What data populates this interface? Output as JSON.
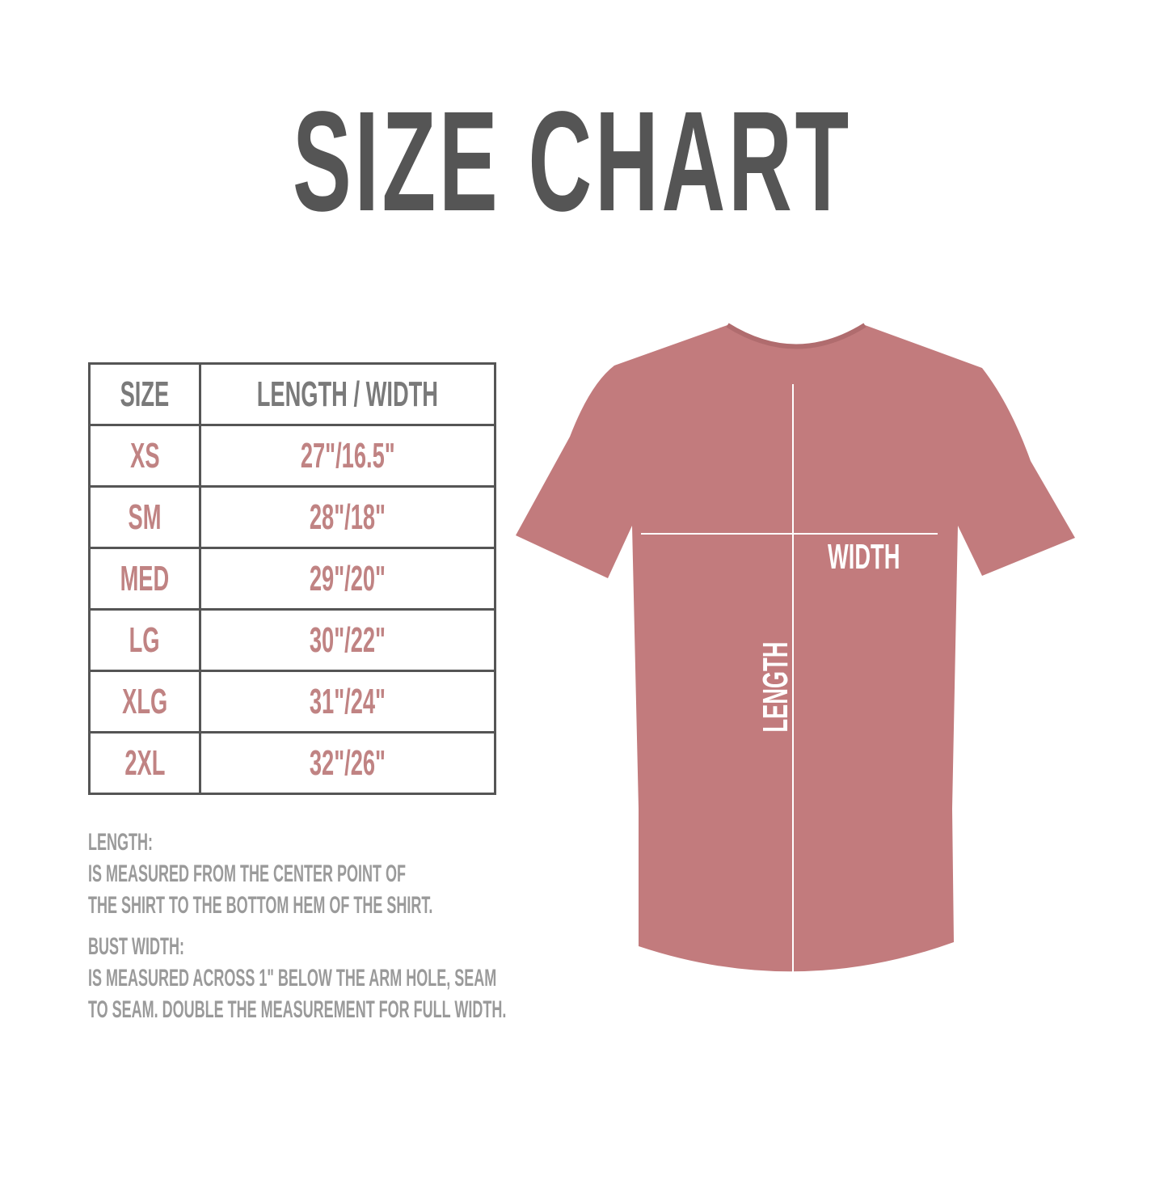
{
  "title": "SIZE CHART",
  "table": {
    "headers": [
      "SIZE",
      "LENGTH / WIDTH"
    ],
    "rows": [
      {
        "size": "XS",
        "measure": "27\"/16.5\""
      },
      {
        "size": "SM",
        "measure": "28\"/18\""
      },
      {
        "size": "MED",
        "measure": "29\"/20\""
      },
      {
        "size": "LG",
        "measure": "30\"/22\""
      },
      {
        "size": "XLG",
        "measure": "31\"/24\""
      },
      {
        "size": "2XL",
        "measure": "32\"/26\""
      }
    ]
  },
  "notes": {
    "length_heading": "LENGTH:",
    "length_lines": [
      "IS MEASURED FROM THE CENTER POINT OF",
      "THE SHIRT TO THE BOTTOM HEM OF THE SHIRT."
    ],
    "width_heading": "BUST WIDTH:",
    "width_lines": [
      "IS MEASURED ACROSS  1\" BELOW THE ARM HOLE, SEAM",
      "TO SEAM. DOUBLE THE MEASUREMENT FOR FULL WIDTH."
    ]
  },
  "shirt": {
    "width_label": "WIDTH",
    "length_label": "LENGTH",
    "color": "#c27b7d"
  },
  "colors": {
    "title": "#555555",
    "header_text": "#7a7a7a",
    "value_text": "#c08383",
    "notes_text": "#9a9a9a",
    "border": "#555555"
  }
}
